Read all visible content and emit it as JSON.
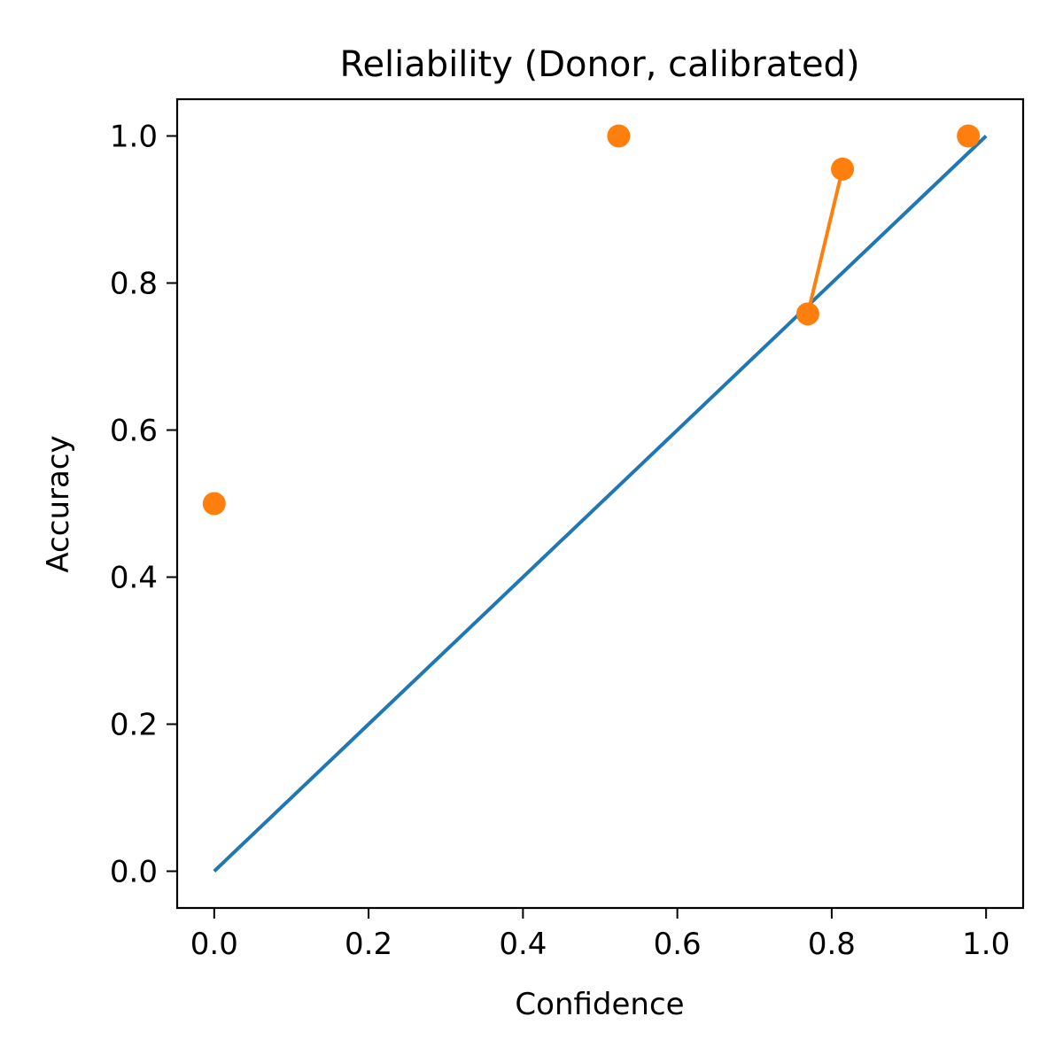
{
  "chart_data": {
    "type": "line",
    "title": "Reliability (Donor, calibrated)",
    "xlabel": "Confidence",
    "ylabel": "Accuracy",
    "xlim": [
      -0.048,
      1.048
    ],
    "ylim": [
      -0.05,
      1.05
    ],
    "xticks": [
      0.0,
      0.2,
      0.4,
      0.6,
      0.8,
      1.0
    ],
    "yticks": [
      0.0,
      0.2,
      0.4,
      0.6,
      0.8,
      1.0
    ],
    "xtick_labels": [
      "0.0",
      "0.2",
      "0.4",
      "0.6",
      "0.8",
      "1.0"
    ],
    "ytick_labels": [
      "0.0",
      "0.2",
      "0.4",
      "0.6",
      "0.8",
      "1.0"
    ],
    "grid": false,
    "series": [
      {
        "kind": "line",
        "color": "#1f77b4",
        "x": [
          0,
          1
        ],
        "y": [
          0,
          1
        ]
      },
      {
        "kind": "line-markers",
        "color": "#ff7f0e",
        "x": [
          0.0,
          0.524,
          0.769,
          0.814,
          0.977
        ],
        "y": [
          0.5,
          1.0,
          0.758,
          0.955,
          1.0
        ],
        "segments": [
          [
            2,
            3
          ]
        ]
      }
    ]
  }
}
